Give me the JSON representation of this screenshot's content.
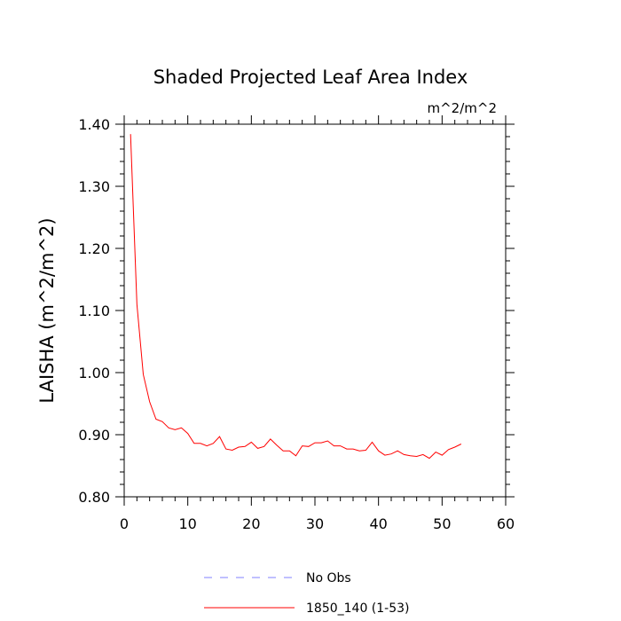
{
  "chart_data": {
    "type": "line",
    "title": "Shaded Projected Leaf Area Index",
    "units_label": "m^2/m^2",
    "ylabel": "LAISHA  (m^2/m^2)",
    "xlabel": "",
    "xlim": [
      0,
      60
    ],
    "ylim": [
      0.8,
      1.4
    ],
    "x_ticks": [
      0,
      10,
      20,
      30,
      40,
      50,
      60
    ],
    "y_ticks": [
      0.8,
      0.9,
      1.0,
      1.1,
      1.2,
      1.3,
      1.4
    ],
    "x_tick_labels": [
      "0",
      "10",
      "20",
      "30",
      "40",
      "50",
      "60"
    ],
    "y_tick_labels": [
      "0.80",
      "0.90",
      "1.00",
      "1.10",
      "1.20",
      "1.30",
      "1.40"
    ],
    "grid": false,
    "legend_position": "bottom",
    "series": [
      {
        "name": "No Obs",
        "color": "#8080ff",
        "dashed": true,
        "x": [],
        "y": []
      },
      {
        "name": "1850_140 (1-53)",
        "color": "#ff0000",
        "dashed": false,
        "x": [
          1,
          2,
          3,
          4,
          5,
          6,
          7,
          8,
          9,
          10,
          11,
          12,
          13,
          14,
          15,
          16,
          17,
          18,
          19,
          20,
          21,
          22,
          23,
          24,
          25,
          26,
          27,
          28,
          29,
          30,
          31,
          32,
          33,
          34,
          35,
          36,
          37,
          38,
          39,
          40,
          41,
          42,
          43,
          44,
          45,
          46,
          47,
          48,
          49,
          50,
          51,
          52,
          53
        ],
        "y": [
          1.384,
          1.11,
          0.997,
          0.953,
          0.925,
          0.921,
          0.911,
          0.908,
          0.911,
          0.902,
          0.886,
          0.886,
          0.882,
          0.886,
          0.897,
          0.877,
          0.875,
          0.88,
          0.881,
          0.888,
          0.878,
          0.881,
          0.893,
          0.883,
          0.874,
          0.874,
          0.866,
          0.882,
          0.881,
          0.887,
          0.887,
          0.89,
          0.882,
          0.882,
          0.877,
          0.877,
          0.874,
          0.875,
          0.888,
          0.874,
          0.867,
          0.869,
          0.874,
          0.868,
          0.866,
          0.865,
          0.868,
          0.862,
          0.872,
          0.867,
          0.876,
          0.88,
          0.885
        ]
      }
    ]
  }
}
